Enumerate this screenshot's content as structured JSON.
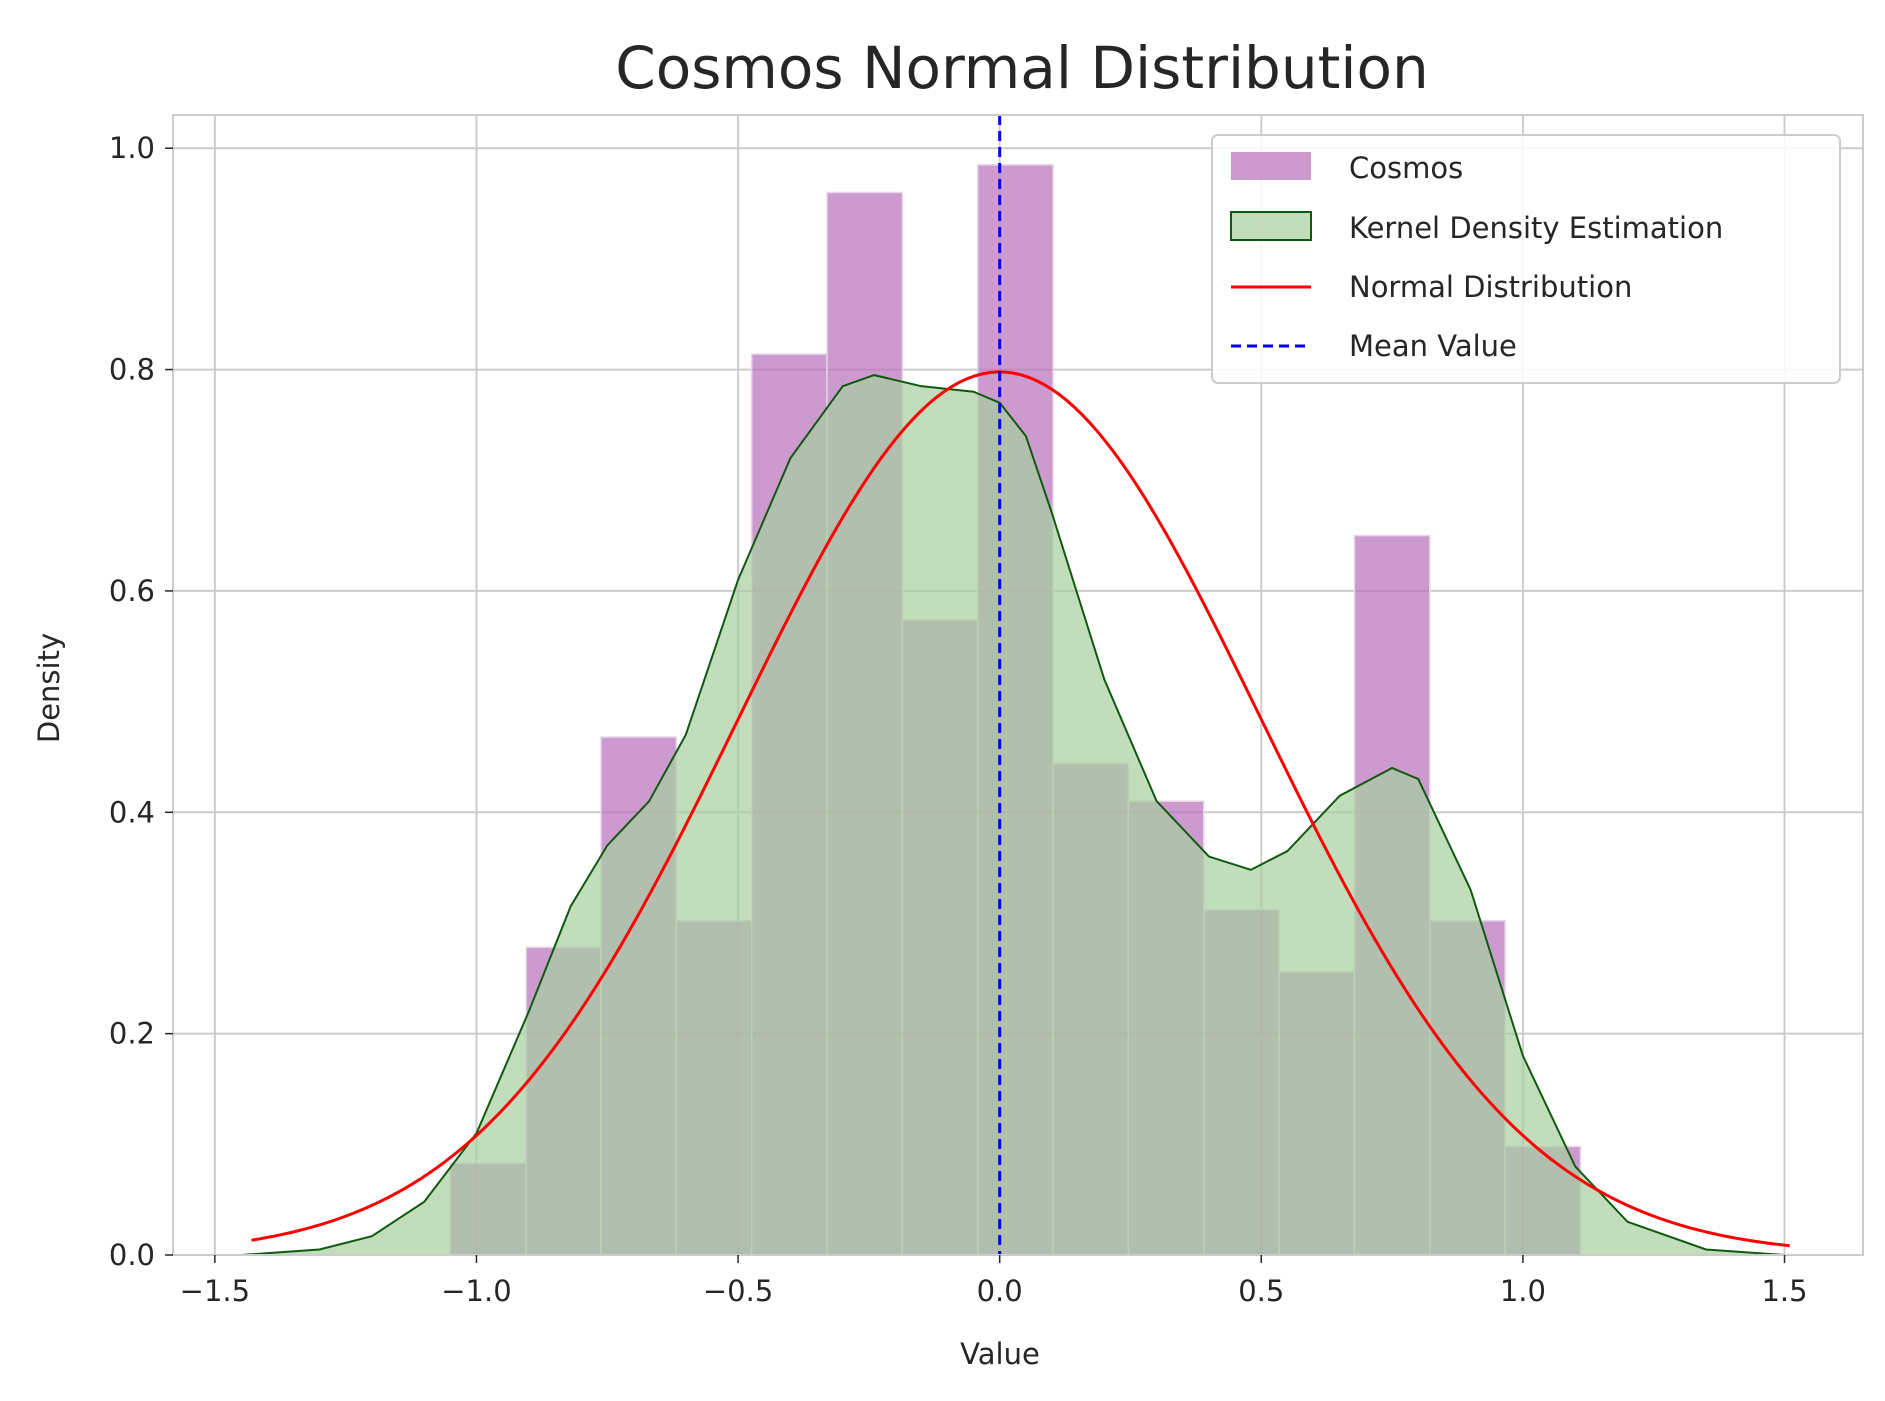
{
  "chart_data": {
    "type": "bar",
    "title": "Cosmos Normal Distribution",
    "xlabel": "Value",
    "ylabel": "Density",
    "xlim": [
      -1.58,
      1.65
    ],
    "ylim": [
      0.0,
      1.03
    ],
    "grid": true,
    "legend_position": "top-right",
    "x_ticks": [
      -1.5,
      -1.0,
      -0.5,
      0.0,
      0.5,
      1.0,
      1.5
    ],
    "x_tick_labels": [
      "−1.5",
      "−1.0",
      "−0.5",
      "0.0",
      "0.5",
      "1.0",
      "1.5"
    ],
    "y_ticks": [
      0.0,
      0.2,
      0.4,
      0.6,
      0.8,
      1.0
    ],
    "y_tick_labels": [
      "0.0",
      "0.2",
      "0.4",
      "0.6",
      "0.8",
      "1.0"
    ],
    "histogram": {
      "name": "Cosmos",
      "color": "#b86fba",
      "bin_edges": [
        -1.05,
        -0.905,
        -0.762,
        -0.618,
        -0.474,
        -0.33,
        -0.186,
        -0.042,
        0.102,
        0.246,
        0.39,
        0.534,
        0.678,
        0.822,
        0.966,
        1.11
      ],
      "values": [
        0.083,
        0.278,
        0.468,
        0.302,
        0.814,
        0.96,
        0.574,
        0.985,
        0.444,
        0.41,
        0.312,
        0.256,
        0.65,
        0.302,
        0.098
      ]
    },
    "kde": {
      "name": "Kernel Density Estimation",
      "fill_color": "#a8cfa0",
      "line_color": "#0f5a0f",
      "x": [
        -1.45,
        -1.3,
        -1.2,
        -1.1,
        -1.0,
        -0.9,
        -0.82,
        -0.75,
        -0.67,
        -0.6,
        -0.5,
        -0.4,
        -0.3,
        -0.24,
        -0.15,
        -0.05,
        0.0,
        0.05,
        0.1,
        0.2,
        0.3,
        0.4,
        0.48,
        0.55,
        0.65,
        0.75,
        0.8,
        0.9,
        1.0,
        1.1,
        1.2,
        1.35,
        1.5
      ],
      "y": [
        0.0,
        0.005,
        0.017,
        0.048,
        0.11,
        0.22,
        0.315,
        0.37,
        0.41,
        0.47,
        0.61,
        0.72,
        0.785,
        0.795,
        0.785,
        0.78,
        0.77,
        0.74,
        0.67,
        0.52,
        0.41,
        0.36,
        0.348,
        0.365,
        0.415,
        0.44,
        0.43,
        0.33,
        0.18,
        0.08,
        0.03,
        0.005,
        0.0
      ]
    },
    "normal": {
      "name": "Normal Distribution",
      "color": "#ff0000",
      "mean": 0.0,
      "std": 0.5,
      "x_range": [
        -1.43,
        1.51
      ]
    },
    "mean_line": {
      "name": "Mean Value",
      "color": "#0000ff",
      "x": 0.0
    },
    "legend": [
      "Cosmos",
      "Kernel Density Estimation",
      "Normal Distribution",
      "Mean Value"
    ]
  }
}
